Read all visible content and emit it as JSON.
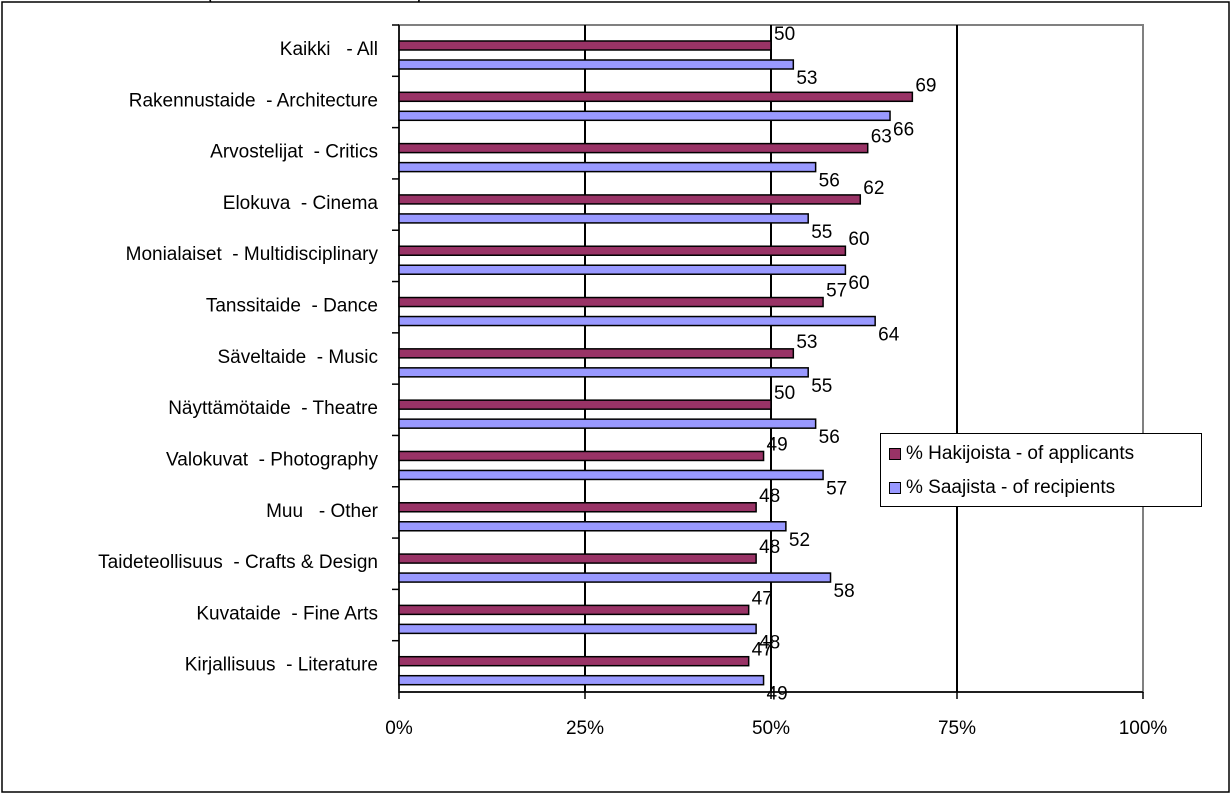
{
  "top_fragment": "(                                      )",
  "legend": {
    "applicants_label": "% Hakijoista - of applicants",
    "recipients_label": "% Saajista - of recipients"
  },
  "colors": {
    "applicants": "#993366",
    "recipients": "#9999FF",
    "gridline": "#000000",
    "plot_border": "#808080"
  },
  "chart_data": {
    "type": "bar",
    "orientation": "horizontal",
    "categories": [
      "Kaikki   - All",
      "Rakennustaide  - Architecture",
      "Arvostelijat  - Critics",
      "Elokuva  - Cinema",
      "Monialaiset  - Multidisciplinary",
      "Tanssitaide  - Dance",
      "Säveltaide  - Music",
      "Näyttämötaide  - Theatre",
      "Valokuvat  - Photography",
      "Muu   - Other",
      "Taideteollisuus  - Crafts & Design",
      "Kuvataide  - Fine Arts",
      "Kirjallisuus  - Literature"
    ],
    "series": [
      {
        "name": "% Hakijoista - of applicants",
        "values": [
          50,
          69,
          63,
          62,
          60,
          57,
          53,
          50,
          49,
          48,
          48,
          47,
          47
        ]
      },
      {
        "name": "% Saajista - of recipients",
        "values": [
          53,
          66,
          56,
          55,
          60,
          64,
          55,
          56,
          57,
          52,
          58,
          48,
          49
        ]
      }
    ],
    "xlim": [
      0,
      100
    ],
    "xticks": [
      "0%",
      "25%",
      "50%",
      "75%",
      "100%"
    ],
    "grid": "vertical lines at 25%, 50%, 75%",
    "legend_position": "right"
  }
}
